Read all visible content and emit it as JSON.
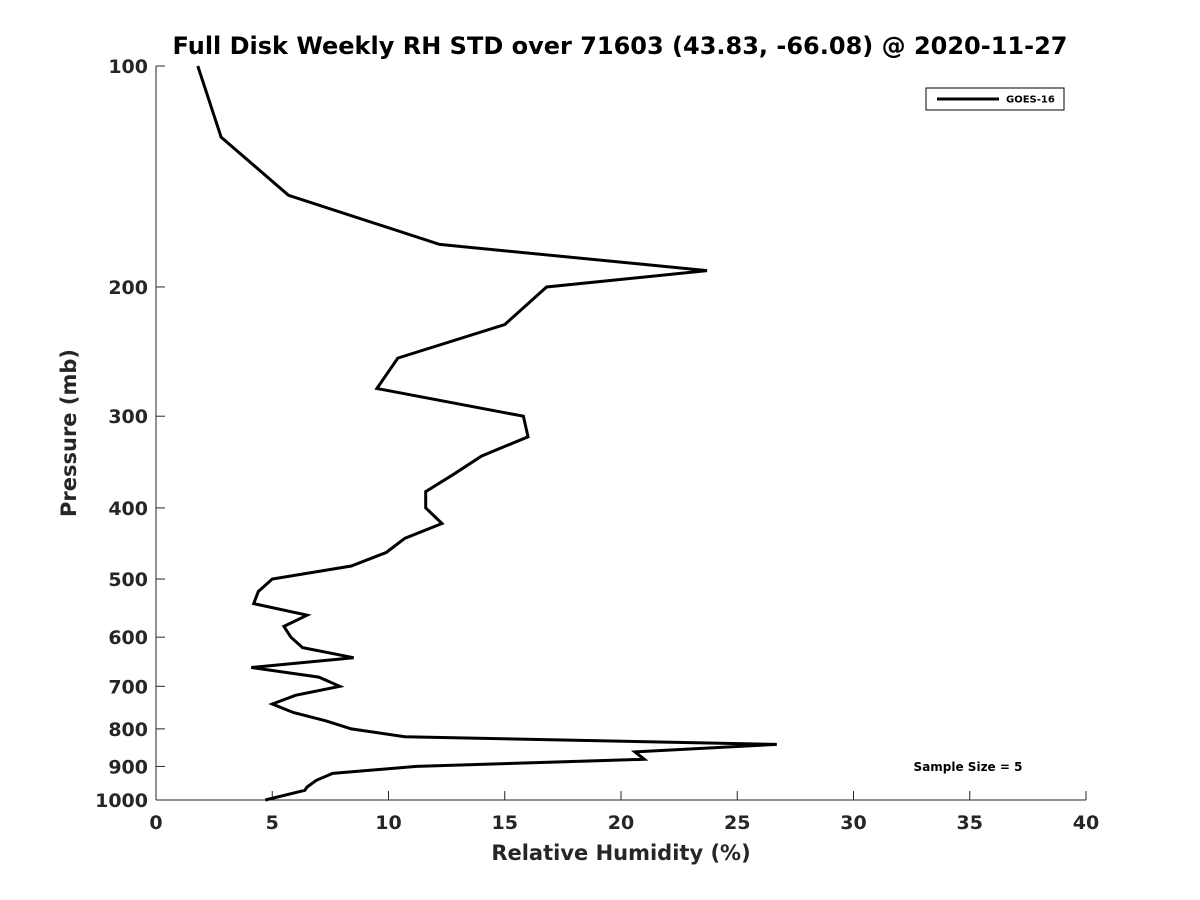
{
  "chart_data": {
    "type": "line",
    "title": "Full Disk Weekly RH STD over 71603 (43.83, -66.08) @ 2020-11-27",
    "xlabel": "Relative Humidity (%)",
    "ylabel": "Pressure (mb)",
    "xlim": [
      0,
      40
    ],
    "ylim": [
      100,
      1000
    ],
    "y_scale": "log",
    "y_reversed": true,
    "x_ticks": [
      "0",
      "5",
      "10",
      "15",
      "20",
      "25",
      "30",
      "35",
      "40"
    ],
    "y_ticks": [
      "100",
      "200",
      "300",
      "400",
      "500",
      "600",
      "700",
      "800",
      "900",
      "1000"
    ],
    "legend_position": "top-right",
    "annotation": "Sample Size = 5",
    "series": [
      {
        "name": "GOES-16",
        "color": "#000000",
        "points": [
          [
            1.8,
            100
          ],
          [
            2.8,
            125
          ],
          [
            5.7,
            150
          ],
          [
            12.2,
            175
          ],
          [
            23.7,
            190
          ],
          [
            16.8,
            200
          ],
          [
            15.0,
            225
          ],
          [
            10.4,
            250
          ],
          [
            9.5,
            275
          ],
          [
            15.8,
            300
          ],
          [
            16.0,
            320
          ],
          [
            14.0,
            340
          ],
          [
            12.8,
            360
          ],
          [
            11.6,
            380
          ],
          [
            11.6,
            400
          ],
          [
            12.3,
            420
          ],
          [
            10.7,
            440
          ],
          [
            9.9,
            460
          ],
          [
            8.4,
            480
          ],
          [
            5.0,
            500
          ],
          [
            4.4,
            520
          ],
          [
            4.2,
            540
          ],
          [
            6.5,
            560
          ],
          [
            5.5,
            580
          ],
          [
            5.8,
            600
          ],
          [
            6.3,
            620
          ],
          [
            8.5,
            640
          ],
          [
            4.1,
            660
          ],
          [
            7.0,
            680
          ],
          [
            7.9,
            700
          ],
          [
            6.0,
            720
          ],
          [
            5.0,
            740
          ],
          [
            5.9,
            760
          ],
          [
            7.3,
            780
          ],
          [
            8.4,
            800
          ],
          [
            10.7,
            820
          ],
          [
            26.7,
            840
          ],
          [
            20.6,
            860
          ],
          [
            21.0,
            880
          ],
          [
            11.2,
            900
          ],
          [
            7.6,
            920
          ],
          [
            6.9,
            940
          ],
          [
            6.5,
            960
          ],
          [
            6.4,
            970
          ],
          [
            4.7,
            1000
          ]
        ]
      }
    ]
  }
}
